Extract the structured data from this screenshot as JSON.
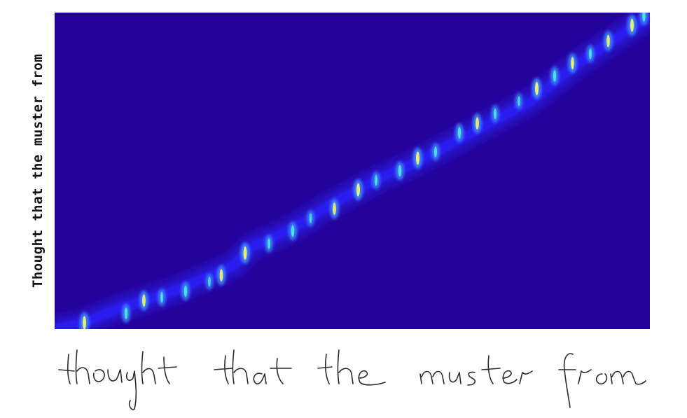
{
  "figure": {
    "y_axis_text": "Thought that the muster from",
    "handwritten_text": "thought that the muster from"
  },
  "colors": {
    "background": "#25039a",
    "low": "#2a1cf0",
    "mid": "#3f8cff",
    "high": "#48f0d8",
    "peak": "#f0f070"
  },
  "chart_data": {
    "type": "heatmap",
    "description_of_axes": {
      "x": "handwriting input frames",
      "y": "characters of transcript"
    },
    "xlim": [
      0,
      1
    ],
    "ylim": [
      0,
      1
    ],
    "alignment_path": [
      [
        0.0,
        0.0
      ],
      [
        0.05,
        0.02
      ],
      [
        0.1,
        0.06
      ],
      [
        0.15,
        0.09
      ],
      [
        0.2,
        0.12
      ],
      [
        0.25,
        0.16
      ],
      [
        0.3,
        0.2
      ],
      [
        0.33,
        0.26
      ],
      [
        0.38,
        0.3
      ],
      [
        0.42,
        0.34
      ],
      [
        0.46,
        0.39
      ],
      [
        0.5,
        0.43
      ],
      [
        0.55,
        0.48
      ],
      [
        0.6,
        0.52
      ],
      [
        0.65,
        0.57
      ],
      [
        0.7,
        0.62
      ],
      [
        0.75,
        0.67
      ],
      [
        0.8,
        0.72
      ],
      [
        0.84,
        0.78
      ],
      [
        0.88,
        0.84
      ],
      [
        0.92,
        0.89
      ],
      [
        0.96,
        0.94
      ],
      [
        1.0,
        0.99
      ]
    ],
    "peaks": [
      [
        0.05,
        0.02,
        0.9
      ],
      [
        0.12,
        0.05,
        0.7
      ],
      [
        0.15,
        0.09,
        0.8
      ],
      [
        0.18,
        0.1,
        0.6
      ],
      [
        0.22,
        0.12,
        0.7
      ],
      [
        0.26,
        0.15,
        0.5
      ],
      [
        0.28,
        0.17,
        0.8
      ],
      [
        0.32,
        0.24,
        0.9
      ],
      [
        0.36,
        0.27,
        0.6
      ],
      [
        0.4,
        0.31,
        0.7
      ],
      [
        0.43,
        0.35,
        0.5
      ],
      [
        0.47,
        0.38,
        0.8
      ],
      [
        0.51,
        0.44,
        0.9
      ],
      [
        0.54,
        0.47,
        0.6
      ],
      [
        0.58,
        0.5,
        0.7
      ],
      [
        0.61,
        0.54,
        0.9
      ],
      [
        0.64,
        0.56,
        0.6
      ],
      [
        0.68,
        0.62,
        0.7
      ],
      [
        0.71,
        0.65,
        0.8
      ],
      [
        0.74,
        0.68,
        0.6
      ],
      [
        0.78,
        0.72,
        0.5
      ],
      [
        0.81,
        0.76,
        0.9
      ],
      [
        0.84,
        0.8,
        0.7
      ],
      [
        0.87,
        0.84,
        0.8
      ],
      [
        0.9,
        0.87,
        0.6
      ],
      [
        0.93,
        0.91,
        0.8
      ],
      [
        0.97,
        0.96,
        0.9
      ],
      [
        0.99,
        0.99,
        0.7
      ]
    ]
  }
}
